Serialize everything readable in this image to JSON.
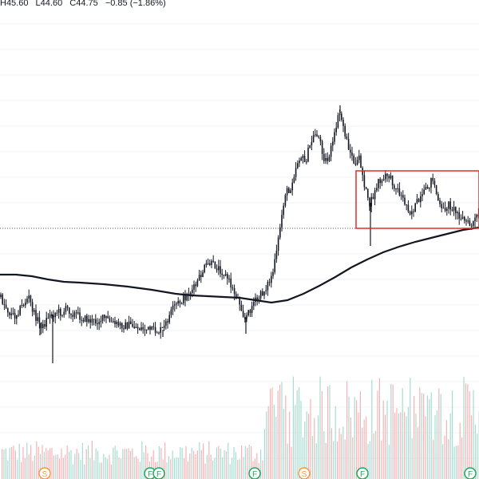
{
  "legend": {
    "high": "H45.60",
    "low": "L44.60",
    "close": "C44.75",
    "change": "−0.85 (−1.86%)"
  },
  "colors": {
    "up": "#089981",
    "down": "#f23645",
    "candle": "#131722",
    "ma": "#131722",
    "box": "#e32b2b",
    "grid": "#f0f3fa",
    "vol_up": "#a7dccf",
    "vol_down": "#f7b3b5"
  },
  "chart_data": {
    "type": "candlestick",
    "series": [
      {
        "name": "price",
        "type": "ohlc"
      },
      {
        "name": "moving average",
        "type": "line"
      },
      {
        "name": "volume",
        "type": "bar"
      }
    ],
    "last_close": 44.75,
    "price_path": [
      [
        0,
        372
      ],
      [
        6,
        382
      ],
      [
        12,
        392
      ],
      [
        18,
        396
      ],
      [
        24,
        388
      ],
      [
        30,
        380
      ],
      [
        36,
        372
      ],
      [
        42,
        392
      ],
      [
        48,
        402
      ],
      [
        54,
        410
      ],
      [
        60,
        396
      ],
      [
        66,
        394
      ],
      [
        72,
        390
      ],
      [
        78,
        392
      ],
      [
        84,
        386
      ],
      [
        90,
        392
      ],
      [
        96,
        394
      ],
      [
        102,
        398
      ],
      [
        108,
        400
      ],
      [
        114,
        402
      ],
      [
        120,
        403
      ],
      [
        126,
        400
      ],
      [
        132,
        398
      ],
      [
        138,
        403
      ],
      [
        144,
        406
      ],
      [
        150,
        407
      ],
      [
        156,
        408
      ],
      [
        162,
        407
      ],
      [
        168,
        409
      ],
      [
        174,
        411
      ],
      [
        180,
        412
      ],
      [
        186,
        413
      ],
      [
        192,
        414
      ],
      [
        198,
        415
      ],
      [
        204,
        413
      ],
      [
        208,
        405
      ],
      [
        212,
        396
      ],
      [
        216,
        388
      ],
      [
        220,
        382
      ],
      [
        226,
        378
      ],
      [
        232,
        372
      ],
      [
        238,
        366
      ],
      [
        244,
        360
      ],
      [
        250,
        348
      ],
      [
        256,
        336
      ],
      [
        262,
        330
      ],
      [
        268,
        332
      ],
      [
        274,
        336
      ],
      [
        280,
        342
      ],
      [
        286,
        350
      ],
      [
        290,
        360
      ],
      [
        294,
        368
      ],
      [
        298,
        374
      ],
      [
        302,
        383
      ],
      [
        306,
        400
      ],
      [
        310,
        395
      ],
      [
        314,
        386
      ],
      [
        318,
        378
      ],
      [
        322,
        376
      ],
      [
        326,
        370
      ],
      [
        330,
        366
      ],
      [
        334,
        358
      ],
      [
        338,
        352
      ],
      [
        342,
        340
      ],
      [
        346,
        320
      ],
      [
        350,
        290
      ],
      [
        354,
        262
      ],
      [
        358,
        238
      ],
      [
        362,
        242
      ],
      [
        366,
        226
      ],
      [
        370,
        212
      ],
      [
        374,
        198
      ],
      [
        378,
        196
      ],
      [
        382,
        205
      ],
      [
        386,
        190
      ],
      [
        390,
        178
      ],
      [
        394,
        168
      ],
      [
        398,
        168
      ],
      [
        402,
        182
      ],
      [
        406,
        198
      ],
      [
        410,
        202
      ],
      [
        414,
        188
      ],
      [
        418,
        176
      ],
      [
        422,
        152
      ],
      [
        426,
        142
      ],
      [
        430,
        158
      ],
      [
        434,
        176
      ],
      [
        438,
        188
      ],
      [
        442,
        200
      ],
      [
        446,
        210
      ],
      [
        450,
        196
      ],
      [
        454,
        218
      ],
      [
        458,
        238
      ],
      [
        462,
        258
      ],
      [
        466,
        250
      ],
      [
        470,
        240
      ],
      [
        474,
        226
      ],
      [
        478,
        230
      ],
      [
        482,
        222
      ],
      [
        486,
        218
      ],
      [
        490,
        226
      ],
      [
        494,
        232
      ],
      [
        498,
        238
      ],
      [
        502,
        244
      ],
      [
        506,
        252
      ],
      [
        510,
        258
      ],
      [
        514,
        266
      ],
      [
        518,
        262
      ],
      [
        522,
        254
      ],
      [
        526,
        252
      ],
      [
        530,
        244
      ],
      [
        534,
        238
      ],
      [
        538,
        230
      ],
      [
        542,
        222
      ],
      [
        546,
        240
      ],
      [
        550,
        256
      ],
      [
        554,
        266
      ],
      [
        558,
        260
      ],
      [
        562,
        256
      ],
      [
        566,
        260
      ],
      [
        570,
        264
      ],
      [
        574,
        268
      ],
      [
        578,
        272
      ],
      [
        582,
        276
      ],
      [
        586,
        280
      ],
      [
        590,
        283
      ],
      [
        594,
        276
      ],
      [
        598,
        271
      ]
    ],
    "spikes": [
      [
        66,
        455
      ],
      [
        308,
        418
      ],
      [
        464,
        308
      ],
      [
        426,
        132
      ],
      [
        50,
        420
      ],
      [
        204,
        422
      ]
    ],
    "ma_path": [
      [
        0,
        344
      ],
      [
        20,
        344
      ],
      [
        40,
        346
      ],
      [
        60,
        350
      ],
      [
        80,
        353
      ],
      [
        100,
        354
      ],
      [
        130,
        356
      ],
      [
        160,
        359
      ],
      [
        190,
        363
      ],
      [
        220,
        368
      ],
      [
        240,
        370
      ],
      [
        260,
        371
      ],
      [
        280,
        372
      ],
      [
        300,
        373
      ],
      [
        320,
        376
      ],
      [
        340,
        379
      ],
      [
        360,
        376
      ],
      [
        380,
        368
      ],
      [
        400,
        358
      ],
      [
        420,
        347
      ],
      [
        440,
        335
      ],
      [
        460,
        325
      ],
      [
        480,
        316
      ],
      [
        500,
        309
      ],
      [
        520,
        303
      ],
      [
        540,
        298
      ],
      [
        560,
        293
      ],
      [
        580,
        288
      ],
      [
        600,
        285
      ]
    ],
    "last_price_line_y": 286,
    "highlight_box": {
      "x1": 446,
      "y1": 214,
      "x2": 600,
      "y2": 286
    },
    "event_markers": [
      {
        "label": "S",
        "type": "split",
        "x": 56
      },
      {
        "label": "F",
        "type": "financial",
        "x": 188
      },
      {
        "label": "F",
        "type": "financial",
        "x": 199
      },
      {
        "label": "F",
        "type": "financial",
        "x": 319
      },
      {
        "label": "S",
        "type": "split",
        "x": 381
      },
      {
        "label": "F",
        "type": "financial",
        "x": 454
      },
      {
        "label": "F",
        "type": "financial",
        "x": 589
      }
    ],
    "grid": true
  }
}
